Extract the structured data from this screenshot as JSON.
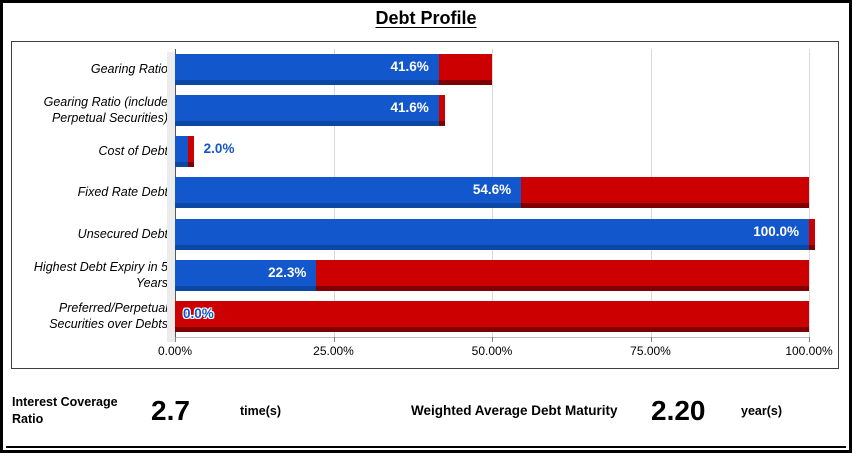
{
  "title": "Debt Profile",
  "chart_data": {
    "type": "bar",
    "orientation": "horizontal",
    "title": "Debt Profile",
    "xlim": [
      0,
      100
    ],
    "x_ticks": [
      "0.00%",
      "25.00%",
      "50.00%",
      "75.00%",
      "100.00%"
    ],
    "x_tick_values": [
      0,
      25,
      50,
      75,
      100
    ],
    "gridlines": [
      25,
      50,
      75,
      100
    ],
    "grid": "vertical",
    "legend": "none",
    "colors": {
      "blue_face": "#1257cb",
      "blue_shadow": "#0c47a6",
      "red_face": "#cc0000",
      "red_shadow": "#7e0000",
      "gridline": "#d9d9d9",
      "outside_label": "#1155cc"
    },
    "categories": [
      "Gearing Ratio",
      "Gearing Ratio (include Perpetual Securities)",
      "Cost of Debt",
      "Fixed Rate Debt",
      "Unsecured Debt",
      "Highest Debt Expiry in 5 Years",
      "Preferred/Perpetual Securities over Debts"
    ],
    "series": [
      {
        "name": "Blue (value)",
        "values": [
          41.6,
          41.6,
          2.0,
          54.6,
          100.0,
          22.3,
          0.0
        ]
      },
      {
        "name": "Red (remainder)",
        "values": [
          8.4,
          0.0,
          0.0,
          45.4,
          0.0,
          77.7,
          100.0
        ]
      }
    ],
    "bars": [
      {
        "category": "Gearing Ratio",
        "value": 41.6,
        "red_to": 50.0,
        "label": "41.6%",
        "label_pos": "in-blue"
      },
      {
        "category": "Gearing Ratio (include Perpetual Securities)",
        "value": 41.6,
        "red_to": 41.6,
        "label": "41.6%",
        "label_pos": "in-blue"
      },
      {
        "category": "Cost of Debt",
        "value": 2.0,
        "red_to": 2.0,
        "label": "2.0%",
        "label_pos": "right-of-bar"
      },
      {
        "category": "Fixed Rate Debt",
        "value": 54.6,
        "red_to": 100.0,
        "label": "54.6%",
        "label_pos": "in-blue"
      },
      {
        "category": "Unsecured Debt",
        "value": 100.0,
        "red_to": 100.0,
        "label": "100.0%",
        "label_pos": "in-blue"
      },
      {
        "category": "Highest Debt Expiry in 5 Years",
        "value": 22.3,
        "red_to": 100.0,
        "label": "22.3%",
        "label_pos": "in-blue"
      },
      {
        "category": "Preferred/Perpetual Securities over Debts",
        "value": 0.0,
        "red_to": 100.0,
        "label": "0.0%",
        "label_pos": "in-red-left"
      }
    ]
  },
  "footer": {
    "metrics": [
      {
        "label": "Interest Coverage Ratio",
        "value": "2.7",
        "unit": "time(s)"
      },
      {
        "label": "Weighted Average Debt Maturity",
        "value": "2.20",
        "unit": "year(s)"
      }
    ]
  }
}
